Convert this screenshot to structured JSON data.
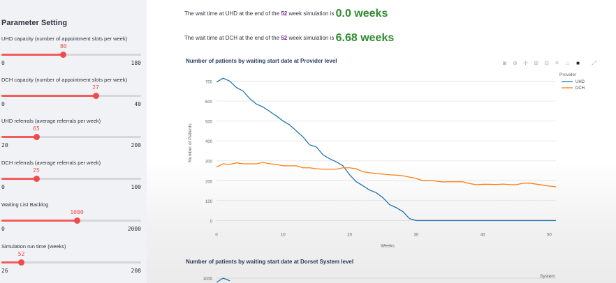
{
  "sidebar": {
    "title": "Parameter Setting",
    "params": [
      {
        "label": "UHD capacity (number of appointment slots per week)",
        "value": "80",
        "min": "0",
        "max": "180",
        "fraction": 0.444
      },
      {
        "label": "DCH capacity (number of appointment slots per week)",
        "value": "27",
        "min": "0",
        "max": "40",
        "fraction": 0.675
      },
      {
        "label": "UHD referrals (average referrals per week)",
        "value": "65",
        "min": "20",
        "max": "200",
        "fraction": 0.25
      },
      {
        "label": "DCH referrals (average referrals per week)",
        "value": "25",
        "min": "0",
        "max": "100",
        "fraction": 0.25
      },
      {
        "label": "Waiting List Backlog",
        "value": "1080",
        "min": "0",
        "max": "2000",
        "fraction": 0.54
      },
      {
        "label": "Simulation run time (weeks)",
        "value": "52",
        "min": "26",
        "max": "208",
        "fraction": 0.143
      }
    ]
  },
  "main": {
    "uhd_wait": {
      "prefix": "The wait time at UHD at the end of the",
      "weeks": "52",
      "suffix": "week simulation is",
      "value": "0.0 weeks"
    },
    "dch_wait": {
      "prefix": "The wait time at DCH at the end of the",
      "weeks": "52",
      "suffix": "week simulation is",
      "value": "6.68 weeks"
    },
    "chart1_title": "Number of patients by waiting start date at Provider level",
    "chart2_title": "Number of patients by waiting start date at Dorset System level",
    "toolbar_icons": [
      "camera-icon",
      "zoom-icon",
      "pan-icon",
      "zoom-in-icon",
      "zoom-out-icon",
      "autoscale-icon",
      "home-icon",
      "plotly-logo-icon"
    ]
  },
  "chart_data": [
    {
      "type": "line",
      "title": "Number of patients by waiting start date at Provider level",
      "xlabel": "Weeks",
      "ylabel": "Number of Patients",
      "legend_title": "Provider",
      "legend_position": "top-right",
      "xlim": [
        0,
        51
      ],
      "ylim": [
        -30,
        740
      ],
      "x_ticks": [
        0,
        10,
        20,
        30,
        40,
        50
      ],
      "y_ticks": [
        0,
        100,
        200,
        300,
        400,
        500,
        600,
        700
      ],
      "series": [
        {
          "name": "UHD",
          "color": "#1f77b4",
          "x": [
            0,
            1,
            2,
            3,
            4,
            5,
            6,
            7,
            8,
            9,
            10,
            11,
            12,
            13,
            14,
            15,
            16,
            17,
            18,
            19,
            20,
            21,
            22,
            23,
            24,
            25,
            26,
            27,
            28,
            29,
            30,
            31,
            32,
            33,
            34,
            35,
            36,
            37,
            38,
            39,
            40,
            41,
            42,
            43,
            44,
            45,
            46,
            47,
            48,
            49,
            50,
            51
          ],
          "values": [
            695,
            715,
            700,
            668,
            650,
            612,
            585,
            570,
            548,
            525,
            500,
            480,
            450,
            420,
            380,
            370,
            330,
            310,
            295,
            275,
            230,
            195,
            175,
            153,
            140,
            115,
            80,
            65,
            45,
            10,
            0,
            0,
            0,
            0,
            0,
            0,
            0,
            0,
            0,
            0,
            0,
            0,
            0,
            0,
            0,
            0,
            0,
            0,
            0,
            0,
            0,
            0
          ]
        },
        {
          "name": "DCH",
          "color": "#ff7f0e",
          "x": [
            0,
            1,
            2,
            3,
            4,
            5,
            6,
            7,
            8,
            9,
            10,
            11,
            12,
            13,
            14,
            15,
            16,
            17,
            18,
            19,
            20,
            21,
            22,
            23,
            24,
            25,
            26,
            27,
            28,
            29,
            30,
            31,
            32,
            33,
            34,
            35,
            36,
            37,
            38,
            39,
            40,
            41,
            42,
            43,
            44,
            45,
            46,
            47,
            48,
            49,
            50,
            51
          ],
          "values": [
            268,
            285,
            282,
            290,
            285,
            285,
            285,
            292,
            285,
            282,
            275,
            275,
            275,
            265,
            265,
            260,
            258,
            258,
            258,
            265,
            265,
            260,
            245,
            240,
            237,
            233,
            230,
            228,
            225,
            218,
            212,
            200,
            202,
            198,
            194,
            195,
            195,
            195,
            186,
            180,
            182,
            182,
            181,
            183,
            181,
            180,
            187,
            188,
            183,
            178,
            173,
            170
          ]
        }
      ]
    },
    {
      "type": "line",
      "title": "Number of patients by waiting start date at Dorset System level",
      "legend_title": "System",
      "y_ticks": [
        1000
      ],
      "series": [
        {
          "name": "",
          "color": "#1f77b4",
          "x": [
            0,
            1,
            2
          ],
          "values": [
            960,
            1000,
            975
          ]
        }
      ]
    }
  ]
}
